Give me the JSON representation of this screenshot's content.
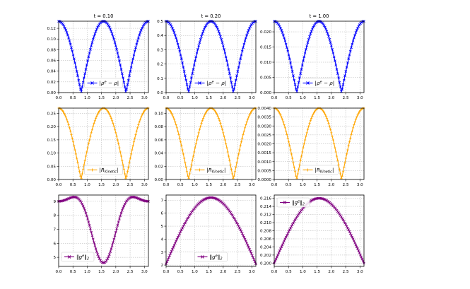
{
  "figure": {
    "colors": {
      "blue": "#0000ff",
      "orange": "#ffa500",
      "purple": "#800080",
      "grid": "#b0b0b0"
    }
  },
  "chart_data": [
    {
      "type": "line",
      "row": 0,
      "col": 0,
      "title": "t = 0.10",
      "xlim": [
        0,
        3.14159
      ],
      "ylim": [
        0,
        0.1333
      ],
      "grid": true,
      "legend_position": "lower center",
      "x_ticks": [
        0,
        0.5,
        1,
        1.5,
        2,
        2.5,
        3
      ],
      "x_tick_labels": [
        "0.0",
        "0.5",
        "1.0",
        "1.5",
        "2.0",
        "2.5",
        "3.0"
      ],
      "y_ticks": [
        0,
        0.02,
        0.04,
        0.06,
        0.08,
        0.1,
        0.12
      ],
      "y_tick_labels": [
        "0.00",
        "0.02",
        "0.04",
        "0.06",
        "0.08",
        "0.10",
        "0.12"
      ],
      "series": [
        {
          "name": "|ρᵉ − ρ|",
          "color": "blue",
          "marker": "x",
          "formula": "abs_cos2x",
          "amplitude": 0.1333,
          "n_points": 100
        }
      ]
    },
    {
      "type": "line",
      "row": 0,
      "col": 1,
      "title": "t = 0.20",
      "xlim": [
        0,
        3.14159
      ],
      "ylim": [
        0,
        0.5
      ],
      "grid": true,
      "legend_position": "lower center",
      "x_ticks": [
        0,
        0.5,
        1,
        1.5,
        2,
        2.5,
        3
      ],
      "x_tick_labels": [
        "0.0",
        "0.5",
        "1.0",
        "1.5",
        "2.0",
        "2.5",
        "3.0"
      ],
      "y_ticks": [
        0,
        0.1,
        0.2,
        0.3,
        0.4,
        0.5
      ],
      "y_tick_labels": [
        "0.0",
        "0.1",
        "0.2",
        "0.3",
        "0.4",
        "0.5"
      ],
      "series": [
        {
          "name": "|ρᵉ − ρ|",
          "color": "blue",
          "marker": "x",
          "formula": "abs_cos2x",
          "amplitude": 0.5,
          "n_points": 100
        }
      ]
    },
    {
      "type": "line",
      "row": 0,
      "col": 2,
      "title": "t = 1.00",
      "xlim": [
        0,
        3.14159
      ],
      "ylim": [
        0,
        0.0235
      ],
      "grid": true,
      "legend_position": "lower center",
      "x_ticks": [
        0,
        0.5,
        1,
        1.5,
        2,
        2.5,
        3
      ],
      "x_tick_labels": [
        "0.0",
        "0.5",
        "1.0",
        "1.5",
        "2.0",
        "2.5",
        "3.0"
      ],
      "y_ticks": [
        0,
        0.005,
        0.01,
        0.015,
        0.02
      ],
      "y_tick_labels": [
        "0.000",
        "0.005",
        "0.010",
        "0.015",
        "0.020"
      ],
      "series": [
        {
          "name": "|ρᵉ − ρ|",
          "color": "blue",
          "marker": "x",
          "formula": "abs_cos2x",
          "amplitude": 0.0235,
          "n_points": 100
        }
      ]
    },
    {
      "type": "line",
      "row": 1,
      "col": 0,
      "title": "",
      "xlim": [
        0,
        3.14159
      ],
      "ylim": [
        0,
        0.27
      ],
      "grid": true,
      "legend_position": "lower center",
      "x_ticks": [
        0,
        0.5,
        1,
        1.5,
        2,
        2.5,
        3
      ],
      "x_tick_labels": [
        "0.0",
        "0.5",
        "1.0",
        "1.5",
        "2.0",
        "2.5",
        "3.0"
      ],
      "y_ticks": [
        0,
        0.05,
        0.1,
        0.15,
        0.2,
        0.25
      ],
      "y_tick_labels": [
        "0.00",
        "0.05",
        "0.10",
        "0.15",
        "0.20",
        "0.25"
      ],
      "series": [
        {
          "name": "|R_Kinetic|",
          "color": "orange",
          "marker": "+",
          "formula": "abs_cos2x",
          "amplitude": 0.27,
          "n_points": 100
        }
      ]
    },
    {
      "type": "line",
      "row": 1,
      "col": 1,
      "title": "",
      "xlim": [
        0,
        3.14159
      ],
      "ylim": [
        0,
        0.108
      ],
      "grid": true,
      "legend_position": "lower center",
      "x_ticks": [
        0,
        0.5,
        1,
        1.5,
        2,
        2.5,
        3
      ],
      "x_tick_labels": [
        "0.0",
        "0.5",
        "1.0",
        "1.5",
        "2.0",
        "2.5",
        "3.0"
      ],
      "y_ticks": [
        0,
        0.02,
        0.04,
        0.06,
        0.08,
        0.1
      ],
      "y_tick_labels": [
        "0.00",
        "0.02",
        "0.04",
        "0.06",
        "0.08",
        "0.10"
      ],
      "series": [
        {
          "name": "|R_Kinetic|",
          "color": "orange",
          "marker": "+",
          "formula": "abs_cos2x",
          "amplitude": 0.108,
          "n_points": 100
        }
      ]
    },
    {
      "type": "line",
      "row": 1,
      "col": 2,
      "title": "",
      "xlim": [
        0,
        3.14159
      ],
      "ylim": [
        0,
        0.004
      ],
      "grid": true,
      "legend_position": "lower center",
      "x_ticks": [
        0,
        0.5,
        1,
        1.5,
        2,
        2.5,
        3
      ],
      "x_tick_labels": [
        "0.0",
        "0.5",
        "1.0",
        "1.5",
        "2.0",
        "2.5",
        "3.0"
      ],
      "y_ticks": [
        0,
        0.0005,
        0.001,
        0.0015,
        0.002,
        0.0025,
        0.003,
        0.0035,
        0.004
      ],
      "y_tick_labels": [
        "0.0000",
        "0.0005",
        "0.0010",
        "0.0015",
        "0.0020",
        "0.0025",
        "0.0030",
        "0.0035",
        "0.0040"
      ],
      "series": [
        {
          "name": "|R_Kinetic|",
          "color": "orange",
          "marker": "+",
          "formula": "abs_cos2x",
          "amplitude": 0.004,
          "n_points": 100
        }
      ]
    },
    {
      "type": "line",
      "row": 2,
      "col": 0,
      "title": "",
      "xlim": [
        0,
        3.14159
      ],
      "ylim": [
        4.35,
        9.45
      ],
      "grid": true,
      "legend_position": "lower left",
      "x_ticks": [
        0,
        0.5,
        1,
        1.5,
        2,
        2.5,
        3
      ],
      "x_tick_labels": [
        "0.0",
        "0.5",
        "1.0",
        "1.5",
        "2.0",
        "2.5",
        "3.0"
      ],
      "y_ticks": [
        5,
        6,
        7,
        8,
        9
      ],
      "y_tick_labels": [
        "5",
        "6",
        "7",
        "8",
        "9"
      ],
      "series": [
        {
          "name": "‖gᵉ‖₂",
          "color": "purple",
          "marker": "x",
          "formula": "norm_dip",
          "n_points": 100,
          "sample_x": [
            0,
            0.52,
            1.57,
            2.62,
            3.14
          ],
          "sample_y": [
            9.0,
            9.3,
            4.6,
            9.3,
            9.0
          ]
        }
      ]
    },
    {
      "type": "line",
      "row": 2,
      "col": 1,
      "title": "",
      "xlim": [
        0,
        3.14159
      ],
      "ylim": [
        1.9,
        7.4
      ],
      "grid": true,
      "legend_position": "lower center",
      "x_ticks": [
        0,
        0.5,
        1,
        1.5,
        2,
        2.5,
        3
      ],
      "x_tick_labels": [
        "0.0",
        "0.5",
        "1.0",
        "1.5",
        "2.0",
        "2.5",
        "3.0"
      ],
      "y_ticks": [
        2,
        3,
        4,
        5,
        6,
        7
      ],
      "y_tick_labels": [
        "2",
        "3",
        "4",
        "5",
        "6",
        "7"
      ],
      "series": [
        {
          "name": "‖gᵉ‖₂",
          "color": "purple",
          "marker": "x",
          "formula": "sin_hump",
          "base": 2.1,
          "amplitude": 5.1,
          "n_points": 100
        }
      ]
    },
    {
      "type": "line",
      "row": 2,
      "col": 2,
      "title": "",
      "xlim": [
        0,
        3.14159
      ],
      "ylim": [
        0.1992,
        0.2168
      ],
      "grid": true,
      "legend_position": "upper left",
      "x_ticks": [
        0,
        0.5,
        1,
        1.5,
        2,
        2.5,
        3
      ],
      "x_tick_labels": [
        "0.0",
        "0.5",
        "1.0",
        "1.5",
        "2.0",
        "2.5",
        "3.0"
      ],
      "y_ticks": [
        0.2,
        0.202,
        0.204,
        0.206,
        0.208,
        0.21,
        0.212,
        0.214,
        0.216
      ],
      "y_tick_labels": [
        "0.200",
        "0.202",
        "0.204",
        "0.206",
        "0.208",
        "0.210",
        "0.212",
        "0.214",
        "0.216"
      ],
      "series": [
        {
          "name": "‖gᵉ‖₂",
          "color": "purple",
          "marker": "x",
          "formula": "sin_hump",
          "base": 0.2,
          "amplitude": 0.016,
          "n_points": 100
        }
      ]
    }
  ]
}
